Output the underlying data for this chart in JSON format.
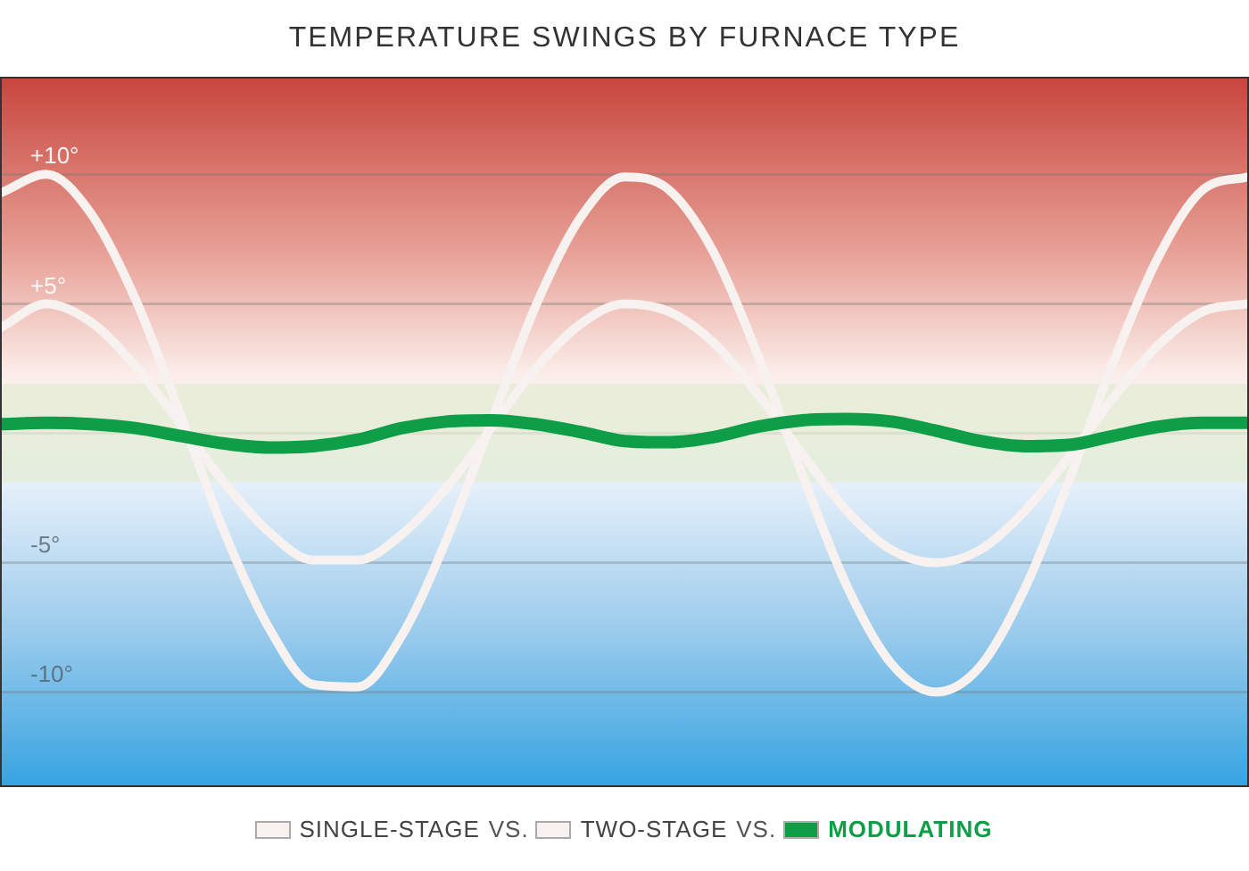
{
  "chart_data": {
    "type": "line",
    "title": "TEMPERATURE SWINGS BY FURNACE TYPE",
    "categories": [
      null,
      null,
      null,
      null,
      null,
      null,
      null,
      null,
      null,
      null,
      null,
      null,
      null,
      null,
      null,
      null,
      null,
      null,
      null,
      null,
      null,
      null,
      null,
      null,
      null,
      null,
      null,
      null,
      null
    ],
    "series": [
      {
        "name": "SINGLE-STAGE",
        "color": "#f7f1ef",
        "values": [
          9.3,
          10,
          8.5,
          5.2,
          0.8,
          -3.8,
          -7.5,
          -9.7,
          -9.8,
          -7.8,
          -4.1,
          0.4,
          4.9,
          8.3,
          9.9,
          9.4,
          7.0,
          3.0,
          -1.6,
          -5.9,
          -8.9,
          -10,
          -9.0,
          -6.0,
          -1.8,
          2.8,
          6.8,
          9.4,
          9.9
        ]
      },
      {
        "name": "TWO-STAGE",
        "color": "#f7f1ef",
        "values": [
          4.1,
          5,
          4.3,
          2.6,
          0.4,
          -1.9,
          -3.8,
          -4.9,
          -4.9,
          -3.9,
          -2.1,
          0.2,
          2.5,
          4.2,
          5,
          4.7,
          3.5,
          1.5,
          -0.8,
          -3,
          -4.5,
          -5,
          -4.5,
          -3,
          -0.9,
          1.4,
          3.4,
          4.7,
          5
        ]
      },
      {
        "name": "MODULATING",
        "color": "#0e9e48",
        "values": [
          0.35,
          0.4,
          0.35,
          0.2,
          -0.1,
          -0.4,
          -0.55,
          -0.5,
          -0.25,
          0.2,
          0.45,
          0.5,
          0.35,
          0.05,
          -0.3,
          -0.35,
          -0.15,
          0.25,
          0.5,
          0.55,
          0.45,
          0.1,
          -0.3,
          -0.5,
          -0.45,
          -0.1,
          0.25,
          0.4,
          0.4
        ]
      }
    ],
    "ylim": [
      -13.6,
      13.7
    ],
    "yticks": [
      {
        "value": 10,
        "label": "+10°"
      },
      {
        "value": 5,
        "label": "+5°"
      },
      {
        "value": 0,
        "label": null
      },
      {
        "value": -5,
        "label": "-5°"
      },
      {
        "value": -10,
        "label": "-10°"
      }
    ],
    "bands": [
      {
        "axis": "y",
        "from": -1.9,
        "to": 1.9,
        "color": "#e2ebd3"
      }
    ],
    "grid": "y",
    "tick_labels": "y",
    "marker": "none",
    "line_style": "solid",
    "legend": "bottom",
    "annotations": [
      "VS.",
      "VS."
    ]
  }
}
